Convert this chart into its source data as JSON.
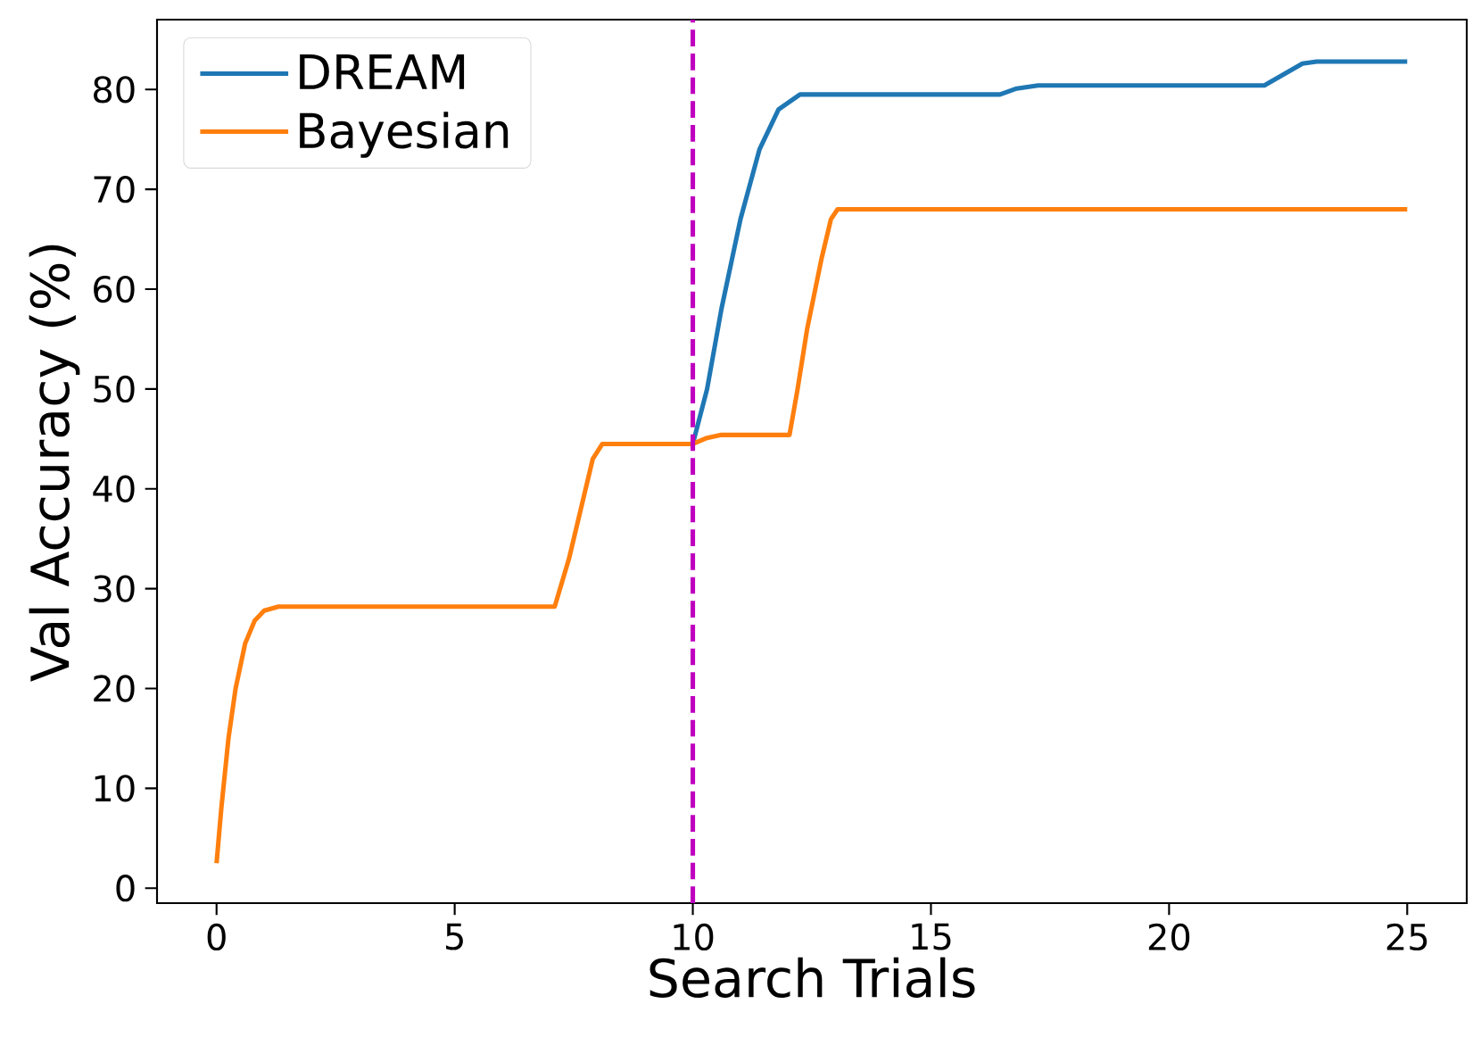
{
  "chart_data": {
    "type": "line",
    "xlabel": "Search Trials",
    "ylabel": "Val Accuracy (%)",
    "xlim": [
      -1.25,
      26.25
    ],
    "ylim": [
      -1.5,
      87
    ],
    "xticks": [
      0,
      5,
      10,
      15,
      20,
      25
    ],
    "yticks": [
      0,
      10,
      20,
      30,
      40,
      50,
      60,
      70,
      80
    ],
    "grid": false,
    "legend": "top left",
    "marker": "none",
    "line_style": "solid",
    "ref_lines": [
      {
        "axis": "x",
        "value": 10,
        "color": "#bf00bf",
        "line_style": "dashed"
      }
    ],
    "series": [
      {
        "name": "DREAM",
        "color": "#1f77b4",
        "x": [
          10,
          10.3,
          10.6,
          11,
          11.4,
          11.8,
          12.25,
          16.45,
          16.8,
          17.25,
          22,
          22.4,
          22.8,
          23.1,
          25
        ],
        "values": [
          44.5,
          50,
          58,
          67,
          74,
          78,
          79.5,
          79.5,
          80.1,
          80.4,
          80.4,
          81.5,
          82.6,
          82.8,
          82.8
        ]
      },
      {
        "name": "Bayesian",
        "color": "#ff7f0e",
        "x": [
          0,
          0.1,
          0.25,
          0.4,
          0.6,
          0.8,
          1,
          1.3,
          7.1,
          7.4,
          7.7,
          7.9,
          8.1,
          10,
          10.3,
          10.6,
          12.03,
          12.2,
          12.4,
          12.7,
          12.9,
          13.04,
          25
        ],
        "values": [
          2.5,
          8,
          15,
          20,
          24.5,
          26.8,
          27.8,
          28.2,
          28.2,
          33,
          39,
          43,
          44.5,
          44.5,
          45.1,
          45.4,
          45.4,
          50,
          56,
          63,
          67,
          68,
          68
        ]
      }
    ]
  }
}
